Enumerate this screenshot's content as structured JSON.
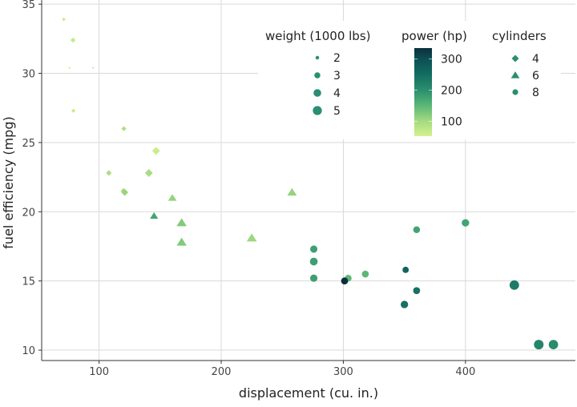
{
  "chart_data": {
    "type": "scatter",
    "xlabel": "displacement (cu. in.)",
    "ylabel": "fuel efficiency (mpg)",
    "xlim": [
      53,
      490
    ],
    "ylim": [
      9.25,
      35.3
    ],
    "xticks": [
      100,
      200,
      300,
      400
    ],
    "yticks": [
      10,
      15,
      20,
      25,
      30,
      35
    ],
    "grid": true,
    "legend_position": "top-right",
    "size_legend": {
      "title": "weight (1000 lbs)",
      "values": [
        2,
        3,
        4,
        5
      ]
    },
    "color_legend": {
      "title": "power (hp)",
      "ticks": [
        100,
        200,
        300
      ],
      "range": [
        52,
        335
      ],
      "stops": [
        {
          "v": 52,
          "c": "#d4f28e"
        },
        {
          "v": 100,
          "c": "#a4da80"
        },
        {
          "v": 150,
          "c": "#5bb877"
        },
        {
          "v": 200,
          "c": "#2a8f6e"
        },
        {
          "v": 260,
          "c": "#10675f"
        },
        {
          "v": 300,
          "c": "#0d4f52"
        },
        {
          "v": 335,
          "c": "#0b2f3c"
        }
      ]
    },
    "shape_legend": {
      "title": "cylinders",
      "values": [
        "4",
        "6",
        "8"
      ]
    },
    "default_color": "#2a8f72",
    "columns": [
      "disp",
      "mpg",
      "hp",
      "wt",
      "cyl"
    ],
    "points": [
      [
        160,
        21.0,
        110,
        2.62,
        6
      ],
      [
        160,
        21.0,
        110,
        2.875,
        6
      ],
      [
        108,
        22.8,
        93,
        2.32,
        4
      ],
      [
        258,
        21.4,
        110,
        3.215,
        6
      ],
      [
        360,
        18.7,
        175,
        3.44,
        8
      ],
      [
        225,
        18.1,
        105,
        3.46,
        6
      ],
      [
        360,
        14.3,
        245,
        3.57,
        8
      ],
      [
        146.7,
        24.4,
        62,
        3.19,
        4
      ],
      [
        140.8,
        22.8,
        95,
        3.15,
        4
      ],
      [
        167.6,
        19.2,
        123,
        3.44,
        6
      ],
      [
        167.6,
        17.8,
        123,
        3.44,
        6
      ],
      [
        275.8,
        16.4,
        180,
        4.07,
        8
      ],
      [
        275.8,
        17.3,
        180,
        3.73,
        8
      ],
      [
        275.8,
        15.2,
        180,
        3.78,
        8
      ],
      [
        472,
        10.4,
        205,
        5.25,
        8
      ],
      [
        460,
        10.4,
        215,
        5.424,
        8
      ],
      [
        440,
        14.7,
        230,
        5.345,
        8
      ],
      [
        78.7,
        32.4,
        66,
        2.2,
        4
      ],
      [
        75.7,
        30.4,
        52,
        1.615,
        4
      ],
      [
        71.1,
        33.9,
        65,
        1.835,
        4
      ],
      [
        120.1,
        21.5,
        97,
        2.465,
        4
      ],
      [
        318,
        15.5,
        150,
        3.52,
        8
      ],
      [
        304,
        15.2,
        150,
        3.435,
        8
      ],
      [
        350,
        13.3,
        245,
        3.84,
        8
      ],
      [
        400,
        19.2,
        175,
        3.845,
        8
      ],
      [
        79,
        27.3,
        66,
        1.935,
        4
      ],
      [
        120.3,
        26.0,
        91,
        2.14,
        4
      ],
      [
        95.1,
        30.4,
        113,
        1.513,
        4
      ],
      [
        351,
        15.8,
        264,
        3.17,
        8
      ],
      [
        145,
        19.7,
        175,
        2.77,
        6
      ],
      [
        301,
        15.0,
        335,
        3.57,
        8
      ],
      [
        121,
        21.4,
        109,
        2.78,
        4
      ]
    ]
  }
}
